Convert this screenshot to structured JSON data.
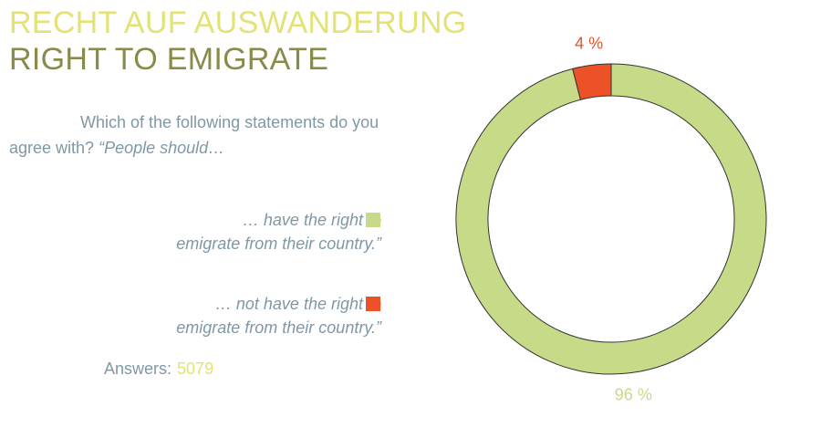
{
  "header": {
    "title_de": "RECHT AUF AUSWANDERUNG",
    "title_en": "RIGHT TO EMIGRATE"
  },
  "question": {
    "text": "Which of the following statements do you agree with?",
    "quote": "“People should…"
  },
  "legend": {
    "items": [
      {
        "line1": "… have the right to",
        "line2": "emigrate from their country.”",
        "color": "#c6da88"
      },
      {
        "line1": "… not have the right to",
        "line2": "emigrate from their country.”",
        "color": "#ec5128"
      }
    ]
  },
  "footer": {
    "answers_label": "Answers:",
    "answers_count": "5079"
  },
  "chart_data": {
    "type": "pie",
    "donut": true,
    "title": "RIGHT TO EMIGRATE",
    "slices": [
      {
        "label": "… have the right to emigrate from their country.”",
        "value": 96,
        "display": "96 %",
        "color": "#c6da88",
        "label_color": "#c6da88"
      },
      {
        "label": "… not have the right to emigrate from their country.”",
        "value": 4,
        "display": "4 %",
        "color": "#ec5128",
        "label_color": "#ec5128"
      }
    ],
    "total_answers": 5079
  }
}
